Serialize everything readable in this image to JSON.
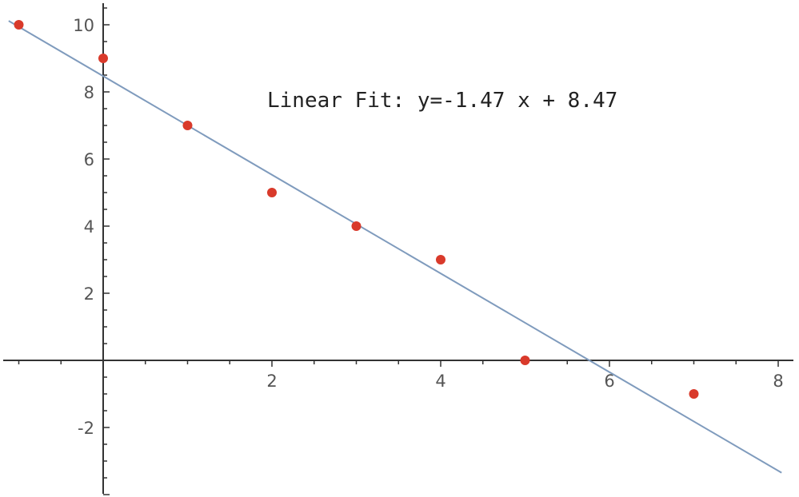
{
  "chart_data": {
    "type": "scatter",
    "title": "",
    "xlabel": "",
    "ylabel": "",
    "xlim": [
      -1,
      8
    ],
    "ylim": [
      -4,
      10.5
    ],
    "x_ticks": [
      2,
      4,
      6,
      8
    ],
    "y_ticks": [
      -2,
      2,
      4,
      6,
      8,
      10
    ],
    "grid": false,
    "series": [
      {
        "points": [
          {
            "x": -1,
            "y": 10
          },
          {
            "x": 0,
            "y": 9
          },
          {
            "x": 1,
            "y": 7
          },
          {
            "x": 2,
            "y": 5
          },
          {
            "x": 3,
            "y": 4
          },
          {
            "x": 4,
            "y": 3
          },
          {
            "x": 5,
            "y": 0
          },
          {
            "x": 7,
            "y": -1
          }
        ],
        "color": "#d93a2b"
      }
    ],
    "fit_line": {
      "slope": -1.47,
      "intercept": 8.47,
      "color": "#7f9bbd"
    },
    "annotation": "Linear Fit: y=-1.47 x + 8.47"
  }
}
